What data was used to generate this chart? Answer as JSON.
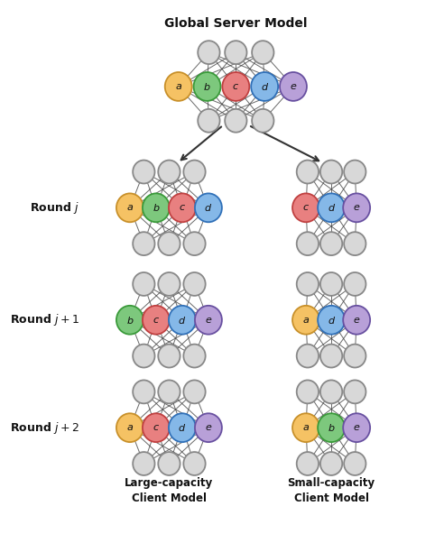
{
  "title": "Global Server Model",
  "bg_color": "#ffffff",
  "node_color": "#d8d8d8",
  "node_edge_color": "#888888",
  "line_color": "#444444",
  "colors": {
    "a": "#F5C264",
    "b": "#7DC87D",
    "c": "#E88080",
    "d": "#85B8E8",
    "e": "#B8A0D8"
  },
  "color_edge": {
    "a": "#C8902A",
    "b": "#3A9A3A",
    "c": "#C04040",
    "d": "#3070B8",
    "e": "#6850A0"
  },
  "large_rounds": [
    {
      "hidden": [
        "a",
        "b",
        "c",
        "d"
      ]
    },
    {
      "hidden": [
        "b",
        "c",
        "d",
        "e"
      ]
    },
    {
      "hidden": [
        "a",
        "c",
        "d",
        "e"
      ]
    }
  ],
  "small_rounds": [
    {
      "hidden": [
        "c",
        "d",
        "e"
      ]
    },
    {
      "hidden": [
        "a",
        "d",
        "e"
      ]
    },
    {
      "hidden": [
        "a",
        "b",
        "e"
      ]
    }
  ],
  "round_labels": [
    "Round $j$",
    "Round $j+1$",
    "Round $j+2$"
  ],
  "label_large": "Large-capacity\nClient Model",
  "label_small": "Small-capacity\nClient Model"
}
